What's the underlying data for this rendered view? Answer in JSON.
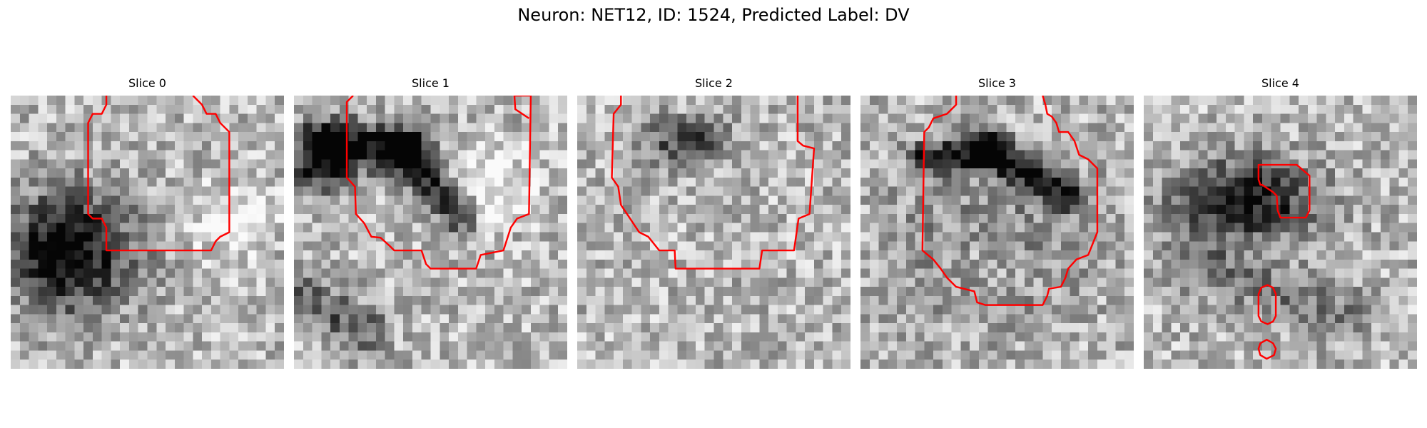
{
  "title": "Neuron: NET12, ID: 1524, Predicted Label: DV",
  "colors": {
    "contour": "#ff0000",
    "background": "#ffffff"
  },
  "panels": [
    {
      "label": "Slice 0",
      "seed": 11,
      "blobs": [
        {
          "cx": 6.5,
          "cy": 17.0,
          "rx": 8.0,
          "ry": 7.5,
          "v": 0.75
        }
      ],
      "ridges": [],
      "light": [
        {
          "cx": 24.0,
          "cy": 14.0,
          "r": 4.0,
          "v": 0.25
        }
      ]
    },
    {
      "label": "Slice 1",
      "seed": 23,
      "blobs": [
        {
          "cx": 3.0,
          "cy": 8.0,
          "rx": 4.0,
          "ry": 3.5,
          "v": 0.55
        }
      ],
      "ridges": [
        {
          "x1": 3,
          "y1": 5,
          "x2": 12,
          "y2": 6,
          "w": 2.5,
          "v": 0.7
        },
        {
          "x1": 12,
          "y1": 6,
          "x2": 18,
          "y2": 13,
          "w": 2.0,
          "v": 0.6
        },
        {
          "x1": 1,
          "y1": 22,
          "x2": 8,
          "y2": 26,
          "w": 2.5,
          "v": 0.35
        }
      ],
      "light": [
        {
          "cx": 22.0,
          "cy": 10.0,
          "r": 4.0,
          "v": 0.25
        }
      ]
    },
    {
      "label": "Slice 2",
      "seed": 37,
      "blobs": [
        {
          "cx": 12.0,
          "cy": 5.0,
          "rx": 6.0,
          "ry": 3.0,
          "v": 0.45
        }
      ],
      "ridges": [],
      "light": []
    },
    {
      "label": "Slice 3",
      "seed": 41,
      "blobs": [
        {
          "cx": 14.0,
          "cy": 16.0,
          "rx": 13.0,
          "ry": 11.0,
          "v": 0.2
        }
      ],
      "ridges": [
        {
          "x1": 7,
          "y1": 7,
          "x2": 14,
          "y2": 6,
          "w": 1.8,
          "v": 0.55
        },
        {
          "x1": 14,
          "y1": 6,
          "x2": 23,
          "y2": 11,
          "w": 1.8,
          "v": 0.6
        }
      ],
      "light": [
        {
          "cx": 14.0,
          "cy": 18.0,
          "r": 4.0,
          "v": 0.15
        }
      ]
    },
    {
      "label": "Slice 4",
      "seed": 53,
      "blobs": [
        {
          "cx": 11.0,
          "cy": 11.5,
          "rx": 9.0,
          "ry": 5.0,
          "v": 0.7
        }
      ],
      "ridges": [
        {
          "x1": 5,
          "y1": 18,
          "x2": 22,
          "y2": 24,
          "w": 3.0,
          "v": 0.25
        }
      ],
      "light": []
    }
  ]
}
